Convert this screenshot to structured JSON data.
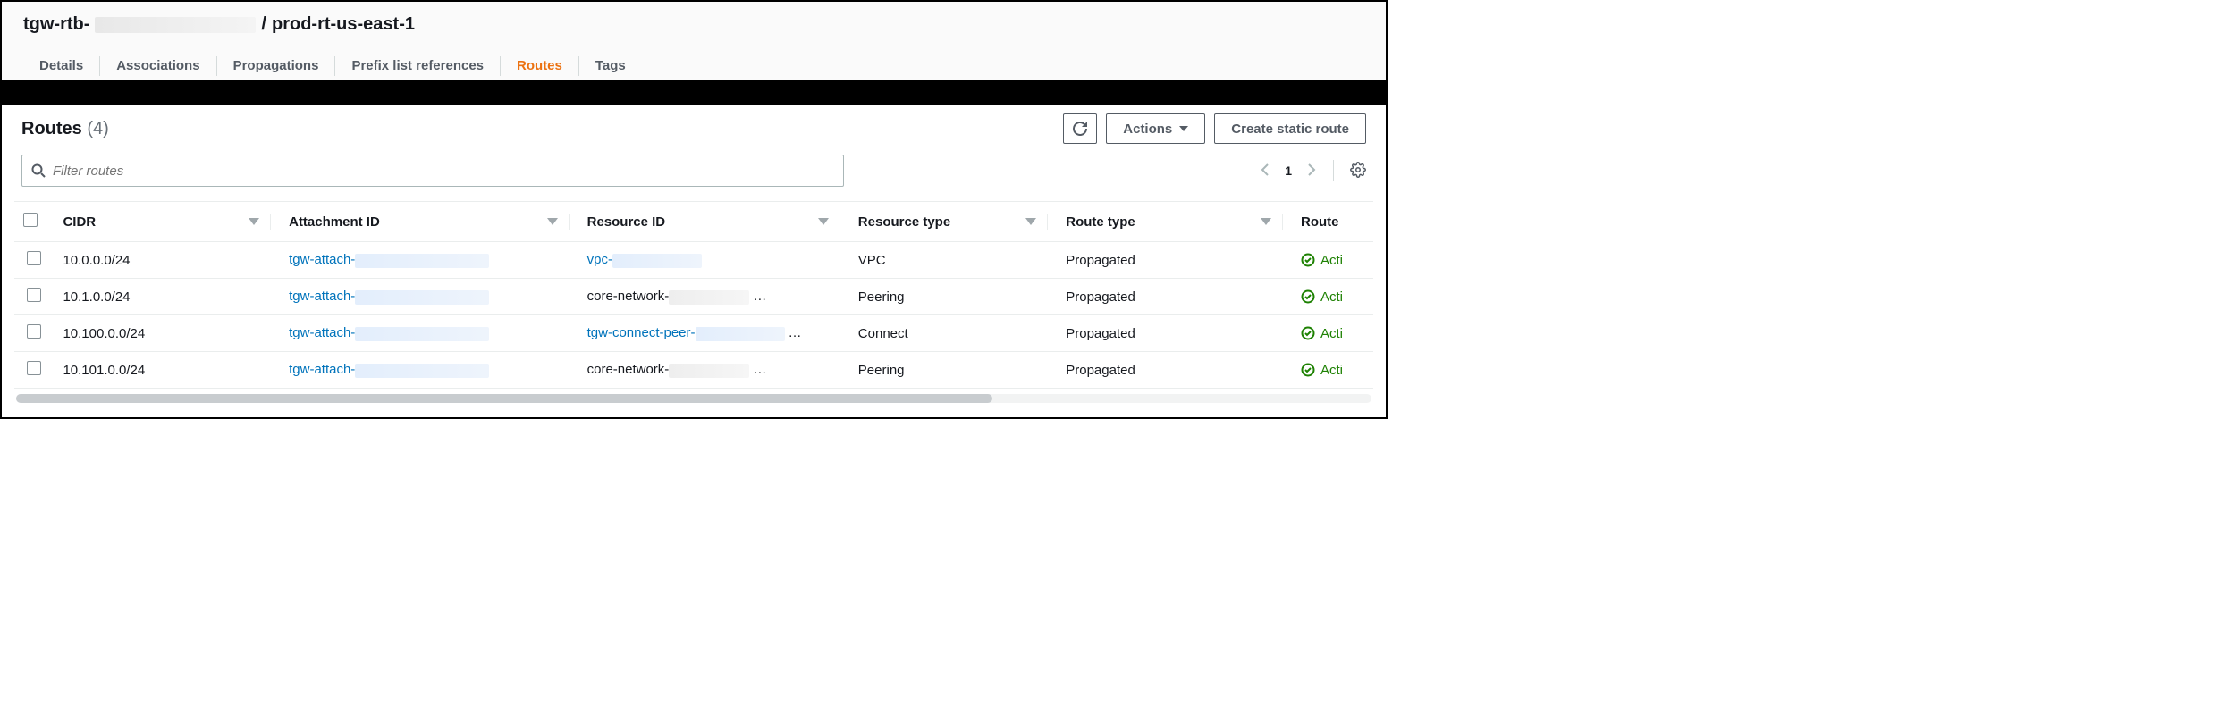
{
  "colors": {
    "accent": "#ec7211",
    "link": "#0073bb",
    "success": "#1d8102",
    "text": "#16191f",
    "muted": "#545b64",
    "border": "#eaeded"
  },
  "breadcrumb": {
    "prefix": "tgw-rtb-",
    "sep": "/",
    "name": "prod-rt-us-east-1"
  },
  "tabs": [
    {
      "label": "Details",
      "active": false
    },
    {
      "label": "Associations",
      "active": false
    },
    {
      "label": "Propagations",
      "active": false
    },
    {
      "label": "Prefix list references",
      "active": false
    },
    {
      "label": "Routes",
      "active": true
    },
    {
      "label": "Tags",
      "active": false
    }
  ],
  "section": {
    "title": "Routes",
    "count": "(4)"
  },
  "buttons": {
    "refresh_aria": "Refresh",
    "actions": "Actions",
    "create": "Create static route"
  },
  "filter": {
    "placeholder": "Filter routes"
  },
  "pager": {
    "page": "1"
  },
  "columns": {
    "cidr": "CIDR",
    "attachment": "Attachment ID",
    "resource": "Resource ID",
    "resource_type": "Resource type",
    "route_type": "Route type",
    "route_state": "Route"
  },
  "rows": [
    {
      "cidr": "10.0.0.0/24",
      "attach_prefix": "tgw-attach-",
      "res_prefix": "vpc-",
      "res_link": true,
      "res_ellipsis": false,
      "resource_type": "VPC",
      "route_type": "Propagated",
      "state": "Acti"
    },
    {
      "cidr": "10.1.0.0/24",
      "attach_prefix": "tgw-attach-",
      "res_prefix": "core-network-",
      "res_link": false,
      "res_ellipsis": true,
      "resource_type": "Peering",
      "route_type": "Propagated",
      "state": "Acti"
    },
    {
      "cidr": "10.100.0.0/24",
      "attach_prefix": "tgw-attach-",
      "res_prefix": "tgw-connect-peer-",
      "res_link": true,
      "res_ellipsis": true,
      "resource_type": "Connect",
      "route_type": "Propagated",
      "state": "Acti"
    },
    {
      "cidr": "10.101.0.0/24",
      "attach_prefix": "tgw-attach-",
      "res_prefix": "core-network-",
      "res_link": false,
      "res_ellipsis": true,
      "resource_type": "Peering",
      "route_type": "Propagated",
      "state": "Acti"
    }
  ]
}
